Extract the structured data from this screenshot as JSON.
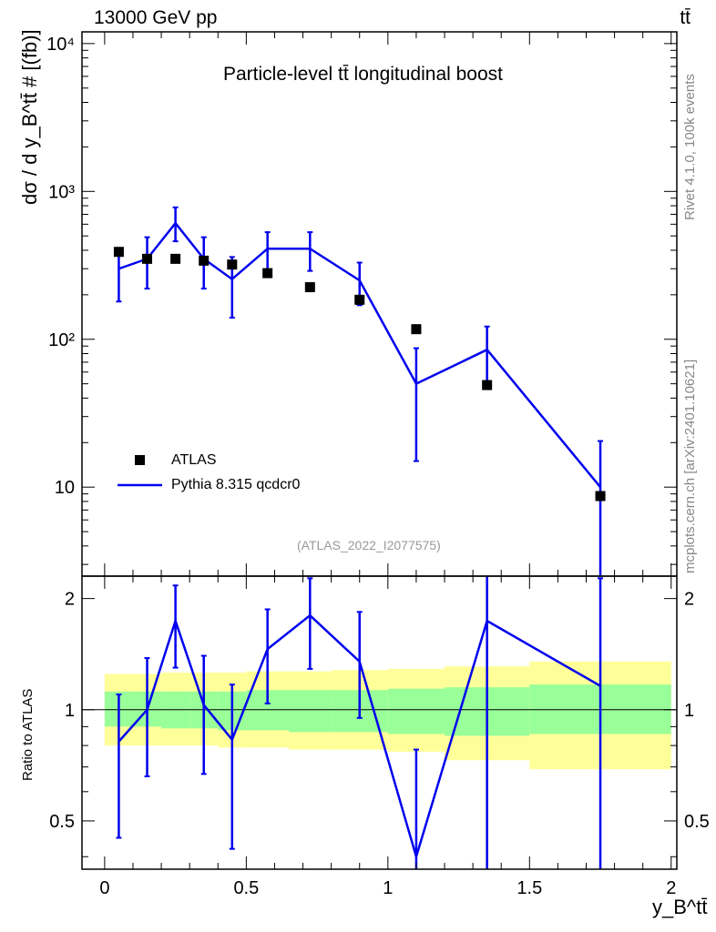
{
  "header": {
    "energy_label": "13000 GeV pp",
    "process_label": "tt̄"
  },
  "side_labels": {
    "rivet": "Rivet 4.1.0,  100k events",
    "mcplots": "mcplots.cern.ch [arXiv:2401.10621]"
  },
  "colors": {
    "mc": "#0000ee",
    "data": "#000000",
    "band_inner": "#99ff99",
    "band_outer": "#ffff99",
    "watermark": "#999999"
  },
  "chart_data": [
    {
      "type": "scatter",
      "panel": "main",
      "title": "Particle-level tt̄ longitudinal boost",
      "ylabel": "dσ / d y_B^tt̄ # [(fb)]",
      "yscale": "log",
      "ylim": [
        2.5,
        12000
      ],
      "xlim": [
        -0.08,
        2.02
      ],
      "yticks": [
        {
          "value": 10,
          "label": "10"
        },
        {
          "value": 100,
          "label": "10²"
        },
        {
          "value": 1000,
          "label": "10³"
        },
        {
          "value": 10000,
          "label": "10⁴"
        }
      ],
      "watermark": "(ATLAS_2022_I2077575)",
      "legend": [
        "ATLAS",
        "Pythia 8.315 qcdcr0"
      ],
      "legend_position": "lower-left",
      "series": [
        {
          "name": "ATLAS",
          "kind": "markers",
          "x": [
            0.05,
            0.15,
            0.25,
            0.35,
            0.45,
            0.575,
            0.725,
            0.9,
            1.1,
            1.35,
            1.75
          ],
          "values": [
            390,
            350,
            350,
            340,
            320,
            280,
            225,
            185,
            117,
            49,
            8.7
          ]
        },
        {
          "name": "Pythia 8.315 qcdcr0",
          "kind": "line",
          "x": [
            0.05,
            0.15,
            0.25,
            0.35,
            0.45,
            0.575,
            0.725,
            0.9,
            1.1,
            1.35,
            1.75
          ],
          "values": [
            300,
            350,
            610,
            350,
            255,
            410,
            410,
            250,
            50,
            85,
            10
          ],
          "err_lo": [
            180,
            220,
            460,
            220,
            140,
            285,
            290,
            170,
            15,
            48,
            2.5
          ],
          "err_hi": [
            410,
            490,
            780,
            490,
            360,
            530,
            530,
            330,
            87,
            122,
            20.5
          ]
        }
      ]
    },
    {
      "type": "line",
      "panel": "ratio",
      "ylabel": "Ratio to ATLAS",
      "xlabel": "y_B^tt̄",
      "yscale": "log",
      "ylim": [
        0.37,
        2.3
      ],
      "xlim": [
        -0.08,
        2.02
      ],
      "yticks": [
        {
          "value": 0.5,
          "label": "0.5"
        },
        {
          "value": 1,
          "label": "1"
        },
        {
          "value": 2,
          "label": "2"
        }
      ],
      "xticks": [
        {
          "value": 0,
          "label": "0"
        },
        {
          "value": 0.5,
          "label": "0.5"
        },
        {
          "value": 1,
          "label": "1"
        },
        {
          "value": 1.5,
          "label": "1.5"
        },
        {
          "value": 2,
          "label": "2"
        }
      ],
      "bin_edges": [
        0,
        0.1,
        0.2,
        0.3,
        0.4,
        0.5,
        0.65,
        0.8,
        1.0,
        1.2,
        1.5,
        2.0
      ],
      "band_inner": {
        "lo": [
          0.9,
          0.9,
          0.89,
          0.89,
          0.88,
          0.88,
          0.87,
          0.87,
          0.86,
          0.85,
          0.86
        ],
        "hi": [
          1.12,
          1.12,
          1.12,
          1.12,
          1.12,
          1.13,
          1.13,
          1.13,
          1.14,
          1.15,
          1.17
        ]
      },
      "band_outer": {
        "lo": [
          0.8,
          0.8,
          0.8,
          0.8,
          0.79,
          0.79,
          0.78,
          0.78,
          0.77,
          0.73,
          0.69
        ],
        "hi": [
          1.25,
          1.25,
          1.26,
          1.26,
          1.26,
          1.27,
          1.27,
          1.28,
          1.29,
          1.31,
          1.35
        ]
      },
      "series": [
        {
          "name": "Pythia 8.315 qcdcr0",
          "x": [
            0.05,
            0.15,
            0.25,
            0.35,
            0.45,
            0.575,
            0.725,
            0.9,
            1.1,
            1.35,
            1.75
          ],
          "values": [
            0.82,
            1.0,
            1.74,
            1.03,
            0.83,
            1.46,
            1.8,
            1.35,
            0.4,
            1.74,
            1.16
          ],
          "err_lo": [
            0.45,
            0.66,
            1.3,
            0.67,
            0.42,
            1.04,
            1.29,
            0.95,
            0.37,
            0.37,
            0.37
          ],
          "err_hi": [
            1.1,
            1.38,
            2.17,
            1.4,
            1.17,
            1.87,
            2.27,
            1.84,
            0.78,
            2.3,
            2.27
          ]
        }
      ]
    }
  ]
}
